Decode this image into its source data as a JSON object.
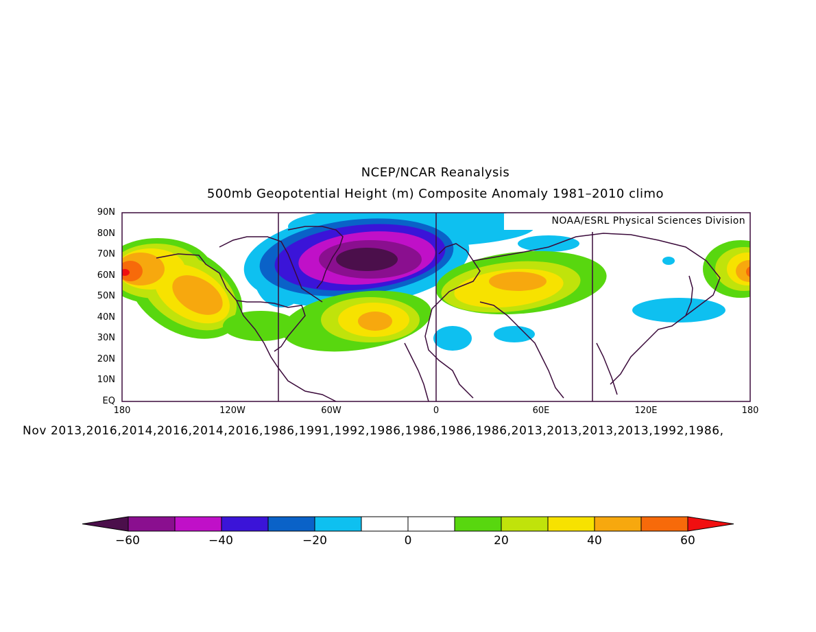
{
  "title": "NCEP/NCAR Reanalysis",
  "subtitle": "500mb Geopotential Height (m) Composite Anomaly 1981–2010 climo",
  "credit": "NOAA/ESRL Physical Sciences Division",
  "footer_dates": "Nov 2013,2016,2014,2016,2014,2016,1986,1991,1992,1986,1986,1986,1986,2013,2013,2013,2013,1992,1986,",
  "y_axis_labels": [
    "90N",
    "80N",
    "70N",
    "60N",
    "50N",
    "40N",
    "30N",
    "20N",
    "10N",
    "EQ"
  ],
  "x_axis_labels": [
    "180",
    "120W",
    "60W",
    "0",
    "60E",
    "120E",
    "180"
  ],
  "colorbar": {
    "labels": [
      "−60",
      "−40",
      "−20",
      "0",
      "20",
      "40",
      "60"
    ],
    "colors": [
      "#4b0f4b",
      "#8a0f8f",
      "#c010c8",
      "#3b14d8",
      "#0a62c8",
      "#0ec0f0",
      "#ffffff",
      "#ffffff",
      "#58d70f",
      "#c0e30b",
      "#f7e200",
      "#f7a80e",
      "#f76a0a",
      "#f10f10"
    ]
  },
  "chart_data": {
    "type": "heatmap",
    "title": "NCEP/NCAR Reanalysis",
    "subtitle": "500mb Geopotential Height (m) Composite Anomaly 1981–2010 climo",
    "projection": "cylindrical equidistant",
    "lon_range": [
      -180,
      180
    ],
    "lat_range": [
      0,
      90
    ],
    "contour_interval": 10,
    "value_range": [
      -60,
      60
    ],
    "anomaly_centers": [
      {
        "lon": -40,
        "lat": 67,
        "value": -65
      },
      {
        "lon": -175,
        "lat": 62,
        "value": 55
      },
      {
        "lon": 175,
        "lat": 62,
        "value": 55
      },
      {
        "lon": -130,
        "lat": 50,
        "value": 40
      },
      {
        "lon": -30,
        "lat": 39,
        "value": 40
      },
      {
        "lon": 40,
        "lat": 53,
        "value": 40
      },
      {
        "lon": 105,
        "lat": 40,
        "value": -15
      },
      {
        "lon": 5,
        "lat": 31,
        "value": -15
      },
      {
        "lon": 40,
        "lat": 32,
        "value": -12
      }
    ]
  }
}
